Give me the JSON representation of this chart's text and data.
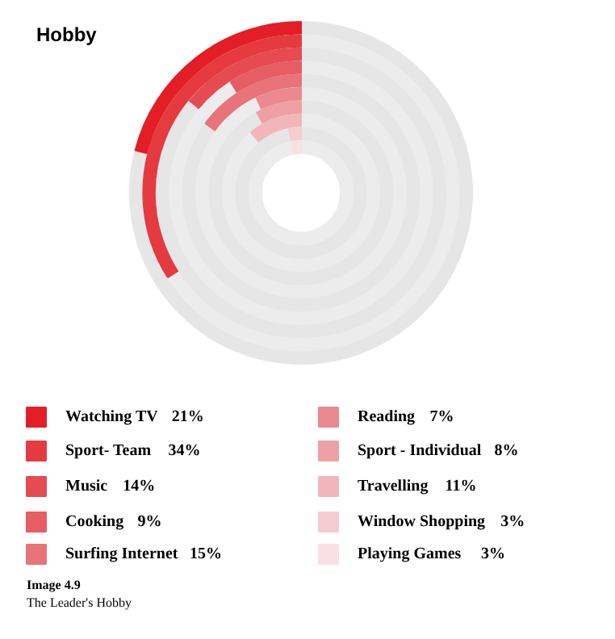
{
  "chart_data": {
    "type": "other",
    "title": "Hobby",
    "categories": [
      "Watching TV",
      "Sport- Team",
      "Music",
      "Cooking",
      "Surfing Internet",
      "Reading",
      "Sport - Individual",
      "Travelling",
      "Window Shopping",
      "Playing Games"
    ],
    "values": [
      21,
      34,
      14,
      9,
      15,
      7,
      8,
      11,
      3,
      3
    ],
    "value_labels": [
      "21%",
      "34%",
      "14%",
      "9%",
      "15%",
      "7%",
      "8%",
      "11%",
      "3%",
      "3%"
    ],
    "colors": [
      "#e31e26",
      "#e53a3f",
      "#e64b52",
      "#e65d64",
      "#e8737a",
      "#ea8a90",
      "#eea0a5",
      "#f2b6ba",
      "#f5cdd0",
      "#f9e0e2"
    ],
    "annotations": [
      "Image 4.9",
      "The Leader's Hobby"
    ]
  }
}
